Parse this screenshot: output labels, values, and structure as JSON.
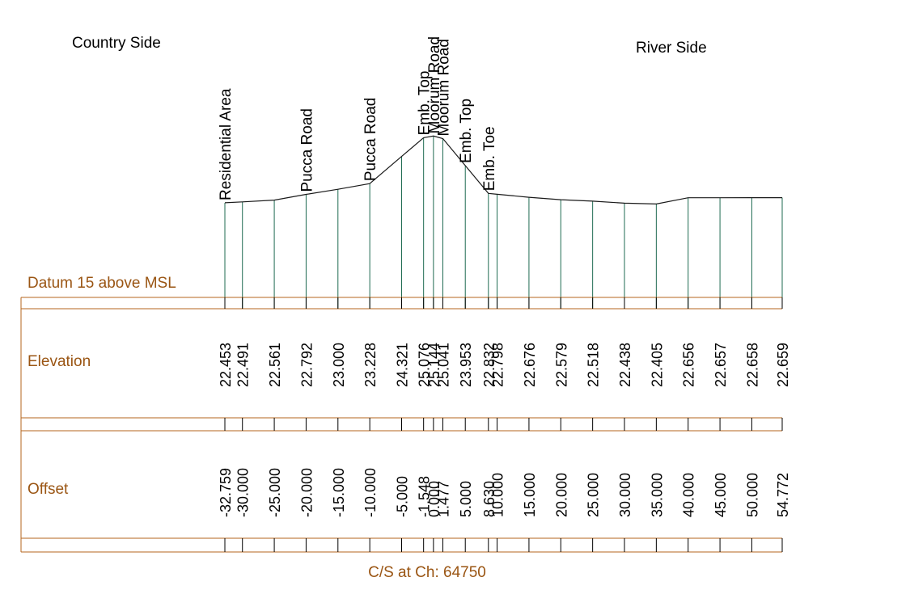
{
  "colors": {
    "profile_line": "#1a1a1a",
    "vertical_lines": "#1f6b52",
    "table_border": "#b5651d",
    "table_text": "#9a5513",
    "values_text": "#000000"
  },
  "header": {
    "left_label": "Country Side",
    "right_label": "River Side"
  },
  "table": {
    "datum_label": "Datum 15 above MSL",
    "elevation_label": "Elevation",
    "offset_label": "Offset",
    "caption": "C/S at Ch: 64750"
  },
  "chart_data": {
    "type": "line",
    "chart_kind": "cross-section profile",
    "datum": 15,
    "xlim": [
      -32.759,
      54.772
    ],
    "grid": false,
    "legend": "none",
    "points": [
      {
        "offset": -32.759,
        "offset_label": "-32.759",
        "elevation": 22.453,
        "elevation_label": "22.453",
        "feature": "Residential Area"
      },
      {
        "offset": -30.0,
        "offset_label": "-30.000",
        "elevation": 22.491,
        "elevation_label": "22.491",
        "feature": ""
      },
      {
        "offset": -25.0,
        "offset_label": "-25.000",
        "elevation": 22.561,
        "elevation_label": "22.561",
        "feature": ""
      },
      {
        "offset": -20.0,
        "offset_label": "-20.000",
        "elevation": 22.792,
        "elevation_label": "22.792",
        "feature": "Pucca Road"
      },
      {
        "offset": -15.0,
        "offset_label": "-15.000",
        "elevation": 23.0,
        "elevation_label": "23.000",
        "feature": ""
      },
      {
        "offset": -10.0,
        "offset_label": "-10.000",
        "elevation": 23.228,
        "elevation_label": "23.228",
        "feature": "Pucca Road"
      },
      {
        "offset": -5.0,
        "offset_label": "-5.000",
        "elevation": 24.321,
        "elevation_label": "24.321",
        "feature": ""
      },
      {
        "offset": -1.548,
        "offset_label": "-1.548",
        "elevation": 25.076,
        "elevation_label": "25.076",
        "feature": "Emb. Top"
      },
      {
        "offset": 0.0,
        "offset_label": "0.000",
        "elevation": 25.144,
        "elevation_label": "25.144",
        "feature": "Moorum Road"
      },
      {
        "offset": 1.477,
        "offset_label": "1.477",
        "elevation": 25.041,
        "elevation_label": "25.041",
        "feature": "Moorum Road"
      },
      {
        "offset": 5.0,
        "offset_label": "5.000",
        "elevation": 23.953,
        "elevation_label": "23.953",
        "feature": "Emb. Top"
      },
      {
        "offset": 8.63,
        "offset_label": "8.630",
        "elevation": 22.832,
        "elevation_label": "22.832",
        "feature": "Emb. Toe"
      },
      {
        "offset": 10.0,
        "offset_label": "10.000",
        "elevation": 22.798,
        "elevation_label": "22.798",
        "feature": ""
      },
      {
        "offset": 15.0,
        "offset_label": "15.000",
        "elevation": 22.676,
        "elevation_label": "22.676",
        "feature": ""
      },
      {
        "offset": 20.0,
        "offset_label": "20.000",
        "elevation": 22.579,
        "elevation_label": "22.579",
        "feature": ""
      },
      {
        "offset": 25.0,
        "offset_label": "25.000",
        "elevation": 22.518,
        "elevation_label": "22.518",
        "feature": ""
      },
      {
        "offset": 30.0,
        "offset_label": "30.000",
        "elevation": 22.438,
        "elevation_label": "22.438",
        "feature": ""
      },
      {
        "offset": 35.0,
        "offset_label": "35.000",
        "elevation": 22.405,
        "elevation_label": "22.405",
        "feature": ""
      },
      {
        "offset": 40.0,
        "offset_label": "40.000",
        "elevation": 22.656,
        "elevation_label": "22.656",
        "feature": ""
      },
      {
        "offset": 45.0,
        "offset_label": "45.000",
        "elevation": 22.657,
        "elevation_label": "22.657",
        "feature": ""
      },
      {
        "offset": 50.0,
        "offset_label": "50.000",
        "elevation": 22.658,
        "elevation_label": "22.658",
        "feature": ""
      },
      {
        "offset": 54.772,
        "offset_label": "54.772",
        "elevation": 22.659,
        "elevation_label": "22.659",
        "feature": ""
      }
    ]
  }
}
